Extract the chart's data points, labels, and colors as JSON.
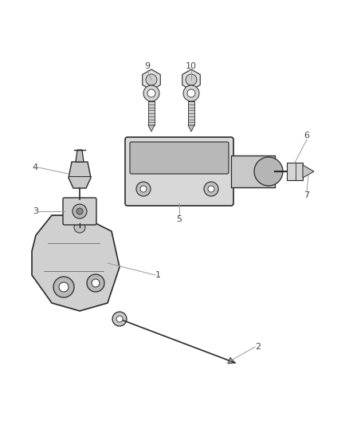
{
  "bg_color": "#ffffff",
  "line_color": "#2a2a2a",
  "label_color": "#666666",
  "fig_width": 4.38,
  "fig_height": 5.33
}
